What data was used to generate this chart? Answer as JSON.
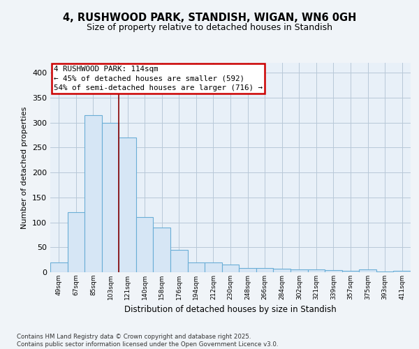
{
  "title": "4, RUSHWOOD PARK, STANDISH, WIGAN, WN6 0GH",
  "subtitle": "Size of property relative to detached houses in Standish",
  "xlabel": "Distribution of detached houses by size in Standish",
  "ylabel": "Number of detached properties",
  "categories": [
    "49sqm",
    "67sqm",
    "85sqm",
    "103sqm",
    "121sqm",
    "140sqm",
    "158sqm",
    "176sqm",
    "194sqm",
    "212sqm",
    "230sqm",
    "248sqm",
    "266sqm",
    "284sqm",
    "302sqm",
    "321sqm",
    "339sqm",
    "357sqm",
    "375sqm",
    "393sqm",
    "411sqm"
  ],
  "values": [
    20,
    120,
    315,
    300,
    270,
    110,
    90,
    45,
    20,
    20,
    15,
    9,
    8,
    7,
    6,
    5,
    4,
    3,
    5,
    2,
    3
  ],
  "bar_color": "#d6e6f5",
  "bar_edge_color": "#6aaed6",
  "annotation_text": "4 RUSHWOOD PARK: 114sqm\n← 45% of detached houses are smaller (592)\n54% of semi-detached houses are larger (716) →",
  "annotation_box_color": "#ffffff",
  "annotation_box_edge_color": "#cc0000",
  "vline_color": "#880000",
  "vline_x_idx": 3.5,
  "ylim": [
    0,
    420
  ],
  "yticks": [
    0,
    50,
    100,
    150,
    200,
    250,
    300,
    350,
    400
  ],
  "footer": "Contains HM Land Registry data © Crown copyright and database right 2025.\nContains public sector information licensed under the Open Government Licence v3.0.",
  "background_color": "#f0f4f8",
  "plot_bg_color": "#e8f0f8",
  "grid_color": "#b8c8d8"
}
